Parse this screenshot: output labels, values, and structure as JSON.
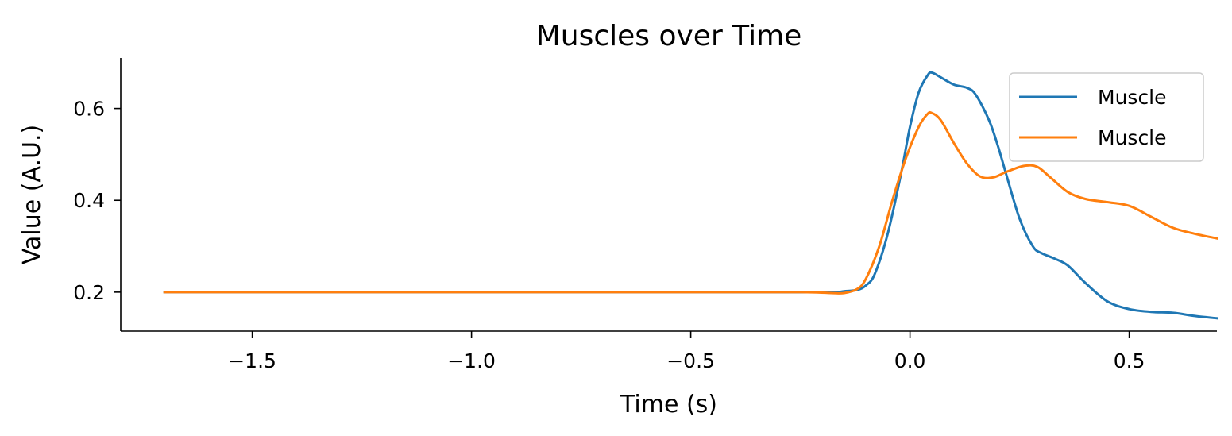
{
  "chart_data": {
    "type": "line",
    "title": "Muscles over Time",
    "xlabel": "Time (s)",
    "ylabel": "Value (A.U.)",
    "xlim": [
      -1.8,
      0.7
    ],
    "ylim": [
      0.115,
      0.71
    ],
    "xticks": [
      -1.5,
      -1.0,
      -0.5,
      0.0,
      0.5
    ],
    "xtick_labels": [
      "−1.5",
      "−1.0",
      "−0.5",
      "0.0",
      "0.5"
    ],
    "yticks": [
      0.2,
      0.4,
      0.6
    ],
    "ytick_labels": [
      "0.2",
      "0.4",
      "0.6"
    ],
    "grid": false,
    "legend_position": "top-right",
    "series": [
      {
        "name": "Muscle",
        "color": "#1f77b4",
        "x": [
          -1.7,
          -0.5,
          -0.2,
          -0.15,
          -0.12,
          -0.1,
          -0.08,
          -0.05,
          -0.02,
          0.0,
          0.02,
          0.04,
          0.05,
          0.07,
          0.1,
          0.13,
          0.15,
          0.18,
          0.2,
          0.22,
          0.25,
          0.28,
          0.3,
          0.33,
          0.36,
          0.4,
          0.45,
          0.5,
          0.55,
          0.6,
          0.65,
          0.7
        ],
        "y": [
          0.2,
          0.2,
          0.2,
          0.202,
          0.205,
          0.215,
          0.24,
          0.33,
          0.46,
          0.56,
          0.635,
          0.672,
          0.678,
          0.668,
          0.652,
          0.645,
          0.63,
          0.575,
          0.52,
          0.455,
          0.36,
          0.3,
          0.285,
          0.273,
          0.258,
          0.22,
          0.18,
          0.163,
          0.157,
          0.155,
          0.148,
          0.143
        ]
      },
      {
        "name": "Muscle",
        "color": "#ff7f0e",
        "x": [
          -1.7,
          -0.5,
          -0.25,
          -0.18,
          -0.15,
          -0.12,
          -0.1,
          -0.07,
          -0.04,
          -0.01,
          0.02,
          0.04,
          0.05,
          0.07,
          0.1,
          0.13,
          0.16,
          0.19,
          0.22,
          0.26,
          0.29,
          0.32,
          0.36,
          0.4,
          0.45,
          0.5,
          0.55,
          0.6,
          0.65,
          0.7
        ],
        "y": [
          0.2,
          0.2,
          0.2,
          0.198,
          0.198,
          0.207,
          0.23,
          0.3,
          0.4,
          0.49,
          0.56,
          0.588,
          0.59,
          0.575,
          0.525,
          0.48,
          0.452,
          0.45,
          0.462,
          0.475,
          0.473,
          0.45,
          0.418,
          0.403,
          0.396,
          0.388,
          0.364,
          0.34,
          0.327,
          0.317
        ]
      }
    ]
  }
}
